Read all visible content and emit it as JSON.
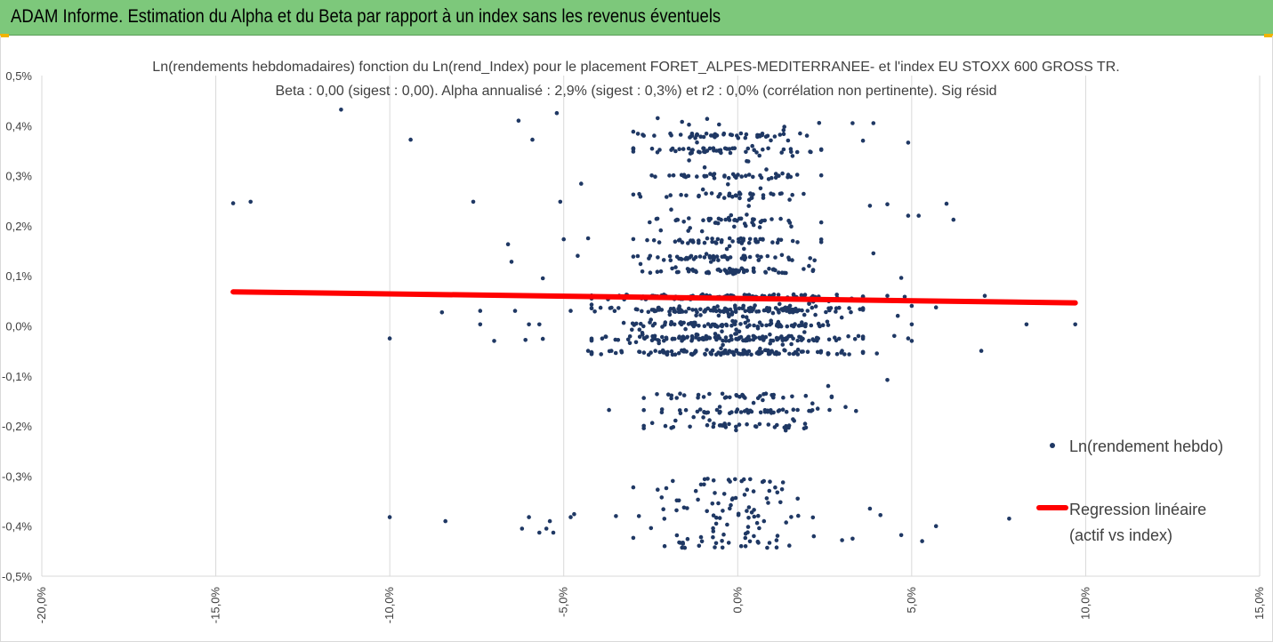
{
  "header": {
    "title": "ADAM Informe. Estimation du Alpha et du Beta par rapport à un index sans les revenus éventuels"
  },
  "colors": {
    "header_bg": "#7dc87b",
    "points": "#1f3864",
    "regression": "#ff0000",
    "corner_accent": "#f0b400"
  },
  "chart_data": {
    "type": "scatter",
    "title_lines": [
      "Ln(rendements hebdomadaires) fonction du Ln(rend_Index) pour le placement FORET_ALPES-MEDITERRANEE- et l'index EU STOXX 600 GROSS TR.",
      "Beta : 0,00 (sigest : 0,00). Alpha annualisé : 2,9% (sigest : 0,3%) et r2 : 0,0% (corrélation non pertinente). Sig résid"
    ],
    "xlim": [
      -20,
      15
    ],
    "ylim": [
      -0.5,
      0.5
    ],
    "x_ticks": [
      {
        "value": -20,
        "label": "-20,0%"
      },
      {
        "value": -15,
        "label": "-15,0%"
      },
      {
        "value": -10,
        "label": "-10,0%"
      },
      {
        "value": -5,
        "label": "-5,0%"
      },
      {
        "value": 0,
        "label": "0,0%"
      },
      {
        "value": 5,
        "label": "5,0%"
      },
      {
        "value": 10,
        "label": "10,0%"
      },
      {
        "value": 15,
        "label": "15,0%"
      }
    ],
    "y_ticks": [
      {
        "value": 0.5,
        "label": "0,5%"
      },
      {
        "value": 0.4,
        "label": "0,4%"
      },
      {
        "value": 0.3,
        "label": "0,3%"
      },
      {
        "value": 0.2,
        "label": "0,2%"
      },
      {
        "value": 0.1,
        "label": "0,1%"
      },
      {
        "value": 0.0,
        "label": "0,0%"
      },
      {
        "value": -0.1,
        "label": "-0,1%"
      },
      {
        "value": -0.2,
        "label": "-0,2%"
      },
      {
        "value": -0.3,
        "label": "-0,3%"
      },
      {
        "value": -0.4,
        "label": "-0,4%"
      },
      {
        "value": -0.5,
        "label": "-0,5%"
      }
    ],
    "grid": "vertical",
    "legend_position": "right",
    "series": [
      {
        "name": "Ln(rendement hebdo)",
        "kind": "scatter",
        "points_explicit": [
          [
            -14.5,
            0.245
          ],
          [
            -14.0,
            0.248
          ],
          [
            -11.4,
            0.432
          ],
          [
            -9.4,
            0.372
          ],
          [
            -7.6,
            0.248
          ],
          [
            -6.3,
            0.41
          ],
          [
            -5.9,
            0.372
          ],
          [
            -5.2,
            0.425
          ],
          [
            -5.1,
            0.248
          ],
          [
            -5.0,
            0.173
          ],
          [
            -4.6,
            0.14
          ],
          [
            -4.5,
            0.284
          ],
          [
            -4.3,
            0.175
          ],
          [
            -6.6,
            0.163
          ],
          [
            -6.5,
            0.128
          ],
          [
            -5.6,
            0.095
          ],
          [
            -10.0,
            -0.025
          ],
          [
            -8.5,
            0.027
          ],
          [
            -7.4,
            0.03
          ],
          [
            -7.4,
            0.003
          ],
          [
            -7.0,
            -0.03
          ],
          [
            -6.4,
            0.03
          ],
          [
            -6.1,
            -0.028
          ],
          [
            -6.0,
            0.003
          ],
          [
            -5.7,
            0.003
          ],
          [
            -5.6,
            -0.026
          ],
          [
            -4.8,
            0.03
          ],
          [
            -4.3,
            -0.05
          ],
          [
            -3.0,
            0.388
          ],
          [
            -2.7,
            0.38
          ],
          [
            -2.4,
            0.38
          ],
          [
            -2.3,
            0.415
          ],
          [
            -1.4,
            0.402
          ],
          [
            -0.9,
            0.384
          ],
          [
            3.3,
            0.405
          ],
          [
            3.9,
            0.405
          ],
          [
            3.6,
            0.37
          ],
          [
            4.9,
            0.366
          ],
          [
            3.8,
            0.24
          ],
          [
            4.3,
            0.243
          ],
          [
            4.9,
            0.22
          ],
          [
            5.2,
            0.22
          ],
          [
            6.0,
            0.244
          ],
          [
            6.2,
            0.212
          ],
          [
            3.9,
            0.145
          ],
          [
            4.7,
            0.096
          ],
          [
            4.3,
            0.06
          ],
          [
            4.8,
            0.058
          ],
          [
            5.0,
            0.04
          ],
          [
            5.7,
            0.037
          ],
          [
            7.1,
            0.06
          ],
          [
            4.6,
            0.02
          ],
          [
            5.0,
            0.003
          ],
          [
            4.0,
            -0.055
          ],
          [
            4.5,
            -0.02
          ],
          [
            4.9,
            -0.025
          ],
          [
            5.0,
            -0.03
          ],
          [
            7.0,
            -0.05
          ],
          [
            8.3,
            0.003
          ],
          [
            9.7,
            0.003
          ],
          [
            4.3,
            -0.108
          ],
          [
            3.0,
            -0.05
          ],
          [
            -3.7,
            -0.168
          ],
          [
            2.6,
            -0.12
          ],
          [
            3.4,
            -0.17
          ],
          [
            3.1,
            -0.162
          ],
          [
            -10.0,
            -0.382
          ],
          [
            -8.4,
            -0.39
          ],
          [
            -6.2,
            -0.405
          ],
          [
            -6.0,
            -0.382
          ],
          [
            -5.7,
            -0.413
          ],
          [
            -5.5,
            -0.405
          ],
          [
            -5.4,
            -0.39
          ],
          [
            -5.3,
            -0.413
          ],
          [
            -4.8,
            -0.382
          ],
          [
            -4.7,
            -0.376
          ],
          [
            -3.5,
            -0.38
          ],
          [
            3.8,
            -0.365
          ],
          [
            4.1,
            -0.378
          ],
          [
            4.7,
            -0.418
          ],
          [
            5.3,
            -0.43
          ],
          [
            5.7,
            -0.4
          ],
          [
            7.8,
            -0.385
          ],
          [
            3.0,
            -0.428
          ],
          [
            3.3,
            -0.425
          ],
          [
            -2.1,
            -0.44
          ],
          [
            -1.6,
            -0.443
          ],
          [
            0.1,
            -0.44
          ]
        ],
        "clusters": [
          {
            "x_min": -4.2,
            "x_max": 3.6,
            "y_min": -0.058,
            "y_max": 0.062,
            "count": 620,
            "bands": [
              0.058,
              0.032,
              0.003,
              -0.025,
              -0.053
            ]
          },
          {
            "x_min": -3.0,
            "x_max": 2.4,
            "y_min": 0.1,
            "y_max": 0.42,
            "count": 420,
            "bands": [
              0.11,
              0.135,
              0.17,
              0.21,
              0.26,
              0.3,
              0.35,
              0.38
            ]
          },
          {
            "x_min": -2.7,
            "x_max": 2.7,
            "y_min": -0.21,
            "y_max": -0.135,
            "count": 130,
            "bands": [
              -0.14,
              -0.17,
              -0.2
            ]
          },
          {
            "x_min": -3.0,
            "x_max": 2.6,
            "y_min": -0.445,
            "y_max": -0.305,
            "count": 110,
            "bands": []
          }
        ]
      },
      {
        "name": "Regression linéaire (actif vs index)",
        "kind": "line",
        "x": [
          -14.5,
          9.7
        ],
        "y": [
          0.068,
          0.046
        ]
      }
    ],
    "legend": [
      {
        "label": "Ln(rendement hebdo)"
      },
      {
        "label_lines": [
          "Regression linéaire",
          "(actif vs index)"
        ]
      }
    ]
  }
}
